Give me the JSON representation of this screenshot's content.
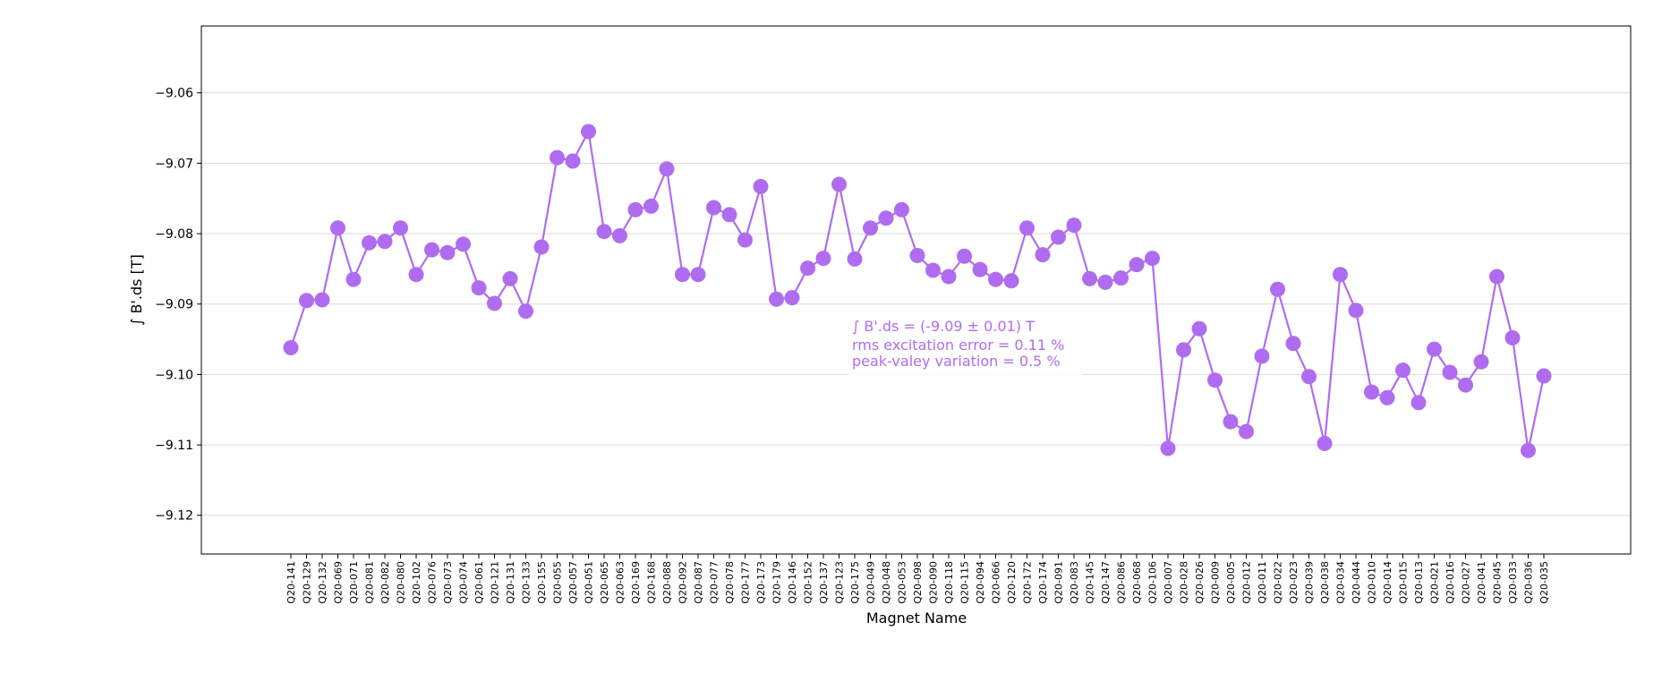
{
  "chart_data": {
    "type": "line",
    "xlabel": "Magnet Name",
    "ylabel": "∫ B'.ds [T]",
    "ylim": [
      -9.1255,
      -9.0505
    ],
    "yticks": [
      -9.06,
      -9.07,
      -9.08,
      -9.09,
      -9.1,
      -9.11,
      -9.12
    ],
    "ytick_labels": [
      "−9.06",
      "−9.07",
      "−9.08",
      "−9.09",
      "−9.10",
      "−9.11",
      "−9.12"
    ],
    "grid": "horizontal",
    "series_color": "#b06cf0",
    "annotation": [
      "∫ B'.ds = (-9.09 ± 0.01) T",
      "rms excitation error = 0.11 %",
      "peak-valey variation = 0.5 %"
    ],
    "categories": [
      "Q20-141",
      "Q20-129",
      "Q20-132",
      "Q20-069",
      "Q20-071",
      "Q20-081",
      "Q20-082",
      "Q20-080",
      "Q20-102",
      "Q20-076",
      "Q20-073",
      "Q20-074",
      "Q20-061",
      "Q20-121",
      "Q20-131",
      "Q20-133",
      "Q20-155",
      "Q20-055",
      "Q20-057",
      "Q20-051",
      "Q20-065",
      "Q20-063",
      "Q20-169",
      "Q20-168",
      "Q20-088",
      "Q20-092",
      "Q20-087",
      "Q20-077",
      "Q20-078",
      "Q20-177",
      "Q20-173",
      "Q20-179",
      "Q20-146",
      "Q20-152",
      "Q20-137",
      "Q20-123",
      "Q20-175",
      "Q20-049",
      "Q20-048",
      "Q20-053",
      "Q20-098",
      "Q20-090",
      "Q20-118",
      "Q20-115",
      "Q20-094",
      "Q20-066",
      "Q20-120",
      "Q20-172",
      "Q20-174",
      "Q20-091",
      "Q20-083",
      "Q20-145",
      "Q20-147",
      "Q20-086",
      "Q20-068",
      "Q20-106",
      "Q20-007",
      "Q20-028",
      "Q20-026",
      "Q20-009",
      "Q20-005",
      "Q20-012",
      "Q20-011",
      "Q20-022",
      "Q20-023",
      "Q20-039",
      "Q20-038",
      "Q20-034",
      "Q20-044",
      "Q20-010",
      "Q20-014",
      "Q20-015",
      "Q20-013",
      "Q20-021",
      "Q20-016",
      "Q20-027",
      "Q20-041",
      "Q20-045",
      "Q20-033",
      "Q20-036",
      "Q20-035"
    ],
    "values": [
      -9.0962,
      -9.0895,
      -9.0894,
      -9.0792,
      -9.0865,
      -9.0813,
      -9.0811,
      -9.0792,
      -9.0858,
      -9.0823,
      -9.0827,
      -9.0815,
      -9.0877,
      -9.0899,
      -9.0864,
      -9.091,
      -9.0819,
      -9.0692,
      -9.0697,
      -9.0655,
      -9.0797,
      -9.0803,
      -9.0766,
      -9.0761,
      -9.0708,
      -9.0858,
      -9.0858,
      -9.0763,
      -9.0773,
      -9.0809,
      -9.0733,
      -9.0893,
      -9.0891,
      -9.0849,
      -9.0835,
      -9.073,
      -9.0836,
      -9.0792,
      -9.0778,
      -9.0766,
      -9.0831,
      -9.0852,
      -9.0861,
      -9.0832,
      -9.0851,
      -9.0865,
      -9.0867,
      -9.0792,
      -9.083,
      -9.0805,
      -9.0788,
      -9.0864,
      -9.0869,
      -9.0863,
      -9.0844,
      -9.0835,
      -9.1105,
      -9.0965,
      -9.0935,
      -9.1008,
      -9.1067,
      -9.1081,
      -9.0974,
      -9.0879,
      -9.0956,
      -9.1003,
      -9.1098,
      -9.0858,
      -9.0909,
      -9.1025,
      -9.1033,
      -9.0994,
      -9.104,
      -9.0964,
      -9.0997,
      -9.1015,
      -9.0982,
      -9.0861,
      -9.0948,
      -9.1108,
      -9.1002
    ]
  }
}
